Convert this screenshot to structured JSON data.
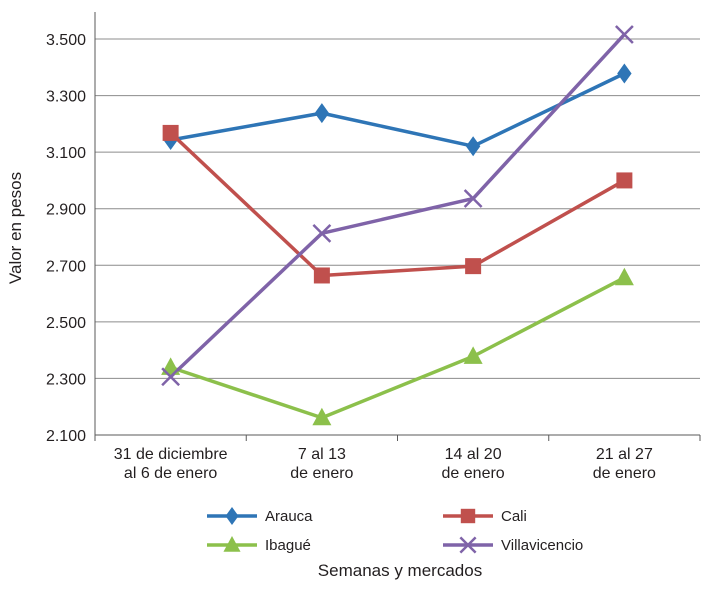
{
  "chart_data": {
    "type": "line",
    "title": "",
    "xlabel": "Semanas y mercados",
    "ylabel": "Valor en pesos",
    "categories": [
      [
        "31 de diciembre",
        "al 6 de enero"
      ],
      [
        "7 al 13",
        "de enero"
      ],
      [
        "14 al 20",
        "de enero"
      ],
      [
        "21 al 27",
        "de enero"
      ]
    ],
    "ylim": [
      2100,
      3600
    ],
    "yticks": [
      2100,
      2300,
      2500,
      2700,
      2900,
      3100,
      3300,
      3500
    ],
    "ytick_labels": [
      "2.100",
      "2.300",
      "2.500",
      "2.700",
      "2.900",
      "3.100",
      "3.300",
      "3.500"
    ],
    "grid": "horizontal",
    "legend_position": "bottom",
    "series": [
      {
        "name": "Arauca",
        "color": "#2e75b6",
        "marker": "diamond",
        "values": [
          3143,
          3238,
          3121,
          3378
        ]
      },
      {
        "name": "Cali",
        "color": "#c0504d",
        "marker": "square",
        "values": [
          3168,
          2664,
          2697,
          3000
        ]
      },
      {
        "name": "Ibagué",
        "color": "#8cc04b",
        "marker": "triangle",
        "values": [
          2339,
          2161,
          2378,
          2656
        ]
      },
      {
        "name": "Villavicencio",
        "color": "#7f63a8",
        "marker": "x",
        "values": [
          2306,
          2813,
          2936,
          3516
        ]
      }
    ]
  }
}
